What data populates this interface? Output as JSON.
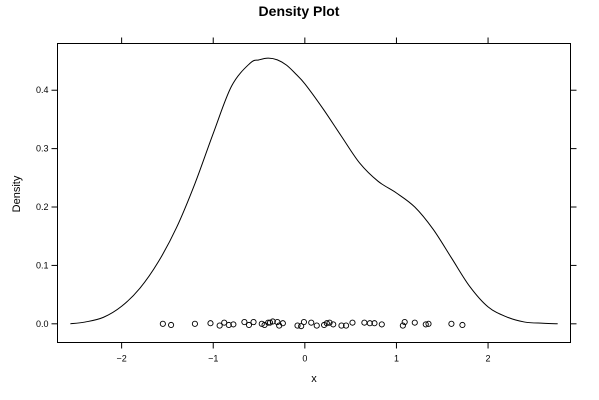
{
  "chart_data": {
    "type": "line",
    "title": "Density Plot",
    "xlabel": "x",
    "ylabel": "Density",
    "xlim": [
      -2.7,
      2.9
    ],
    "ylim": [
      -0.032,
      0.48
    ],
    "xticks": [
      -2,
      -1,
      0,
      1,
      2
    ],
    "yticks": [
      0.0,
      0.1,
      0.2,
      0.3,
      0.4
    ],
    "xtick_labels": [
      "−2",
      "−1",
      "0",
      "1",
      "2"
    ],
    "ytick_labels": [
      "0.0",
      "0.1",
      "0.2",
      "0.3",
      "0.4"
    ],
    "grid": false,
    "legend": "none",
    "series": [
      {
        "x": [
          -2.56,
          -2.4,
          -2.2,
          -2.0,
          -1.8,
          -1.6,
          -1.4,
          -1.2,
          -1.0,
          -0.8,
          -0.6,
          -0.5,
          -0.4,
          -0.3,
          -0.2,
          -0.1,
          0.0,
          0.2,
          0.4,
          0.6,
          0.8,
          1.0,
          1.2,
          1.4,
          1.6,
          1.8,
          2.0,
          2.2,
          2.4,
          2.6,
          2.76
        ],
        "y": [
          0.0,
          0.003,
          0.011,
          0.03,
          0.061,
          0.106,
          0.165,
          0.24,
          0.326,
          0.407,
          0.446,
          0.452,
          0.455,
          0.452,
          0.443,
          0.428,
          0.411,
          0.368,
          0.321,
          0.275,
          0.244,
          0.224,
          0.2,
          0.162,
          0.113,
          0.064,
          0.029,
          0.012,
          0.003,
          0.001,
          0.0
        ]
      }
    ],
    "rug": {
      "x": [
        -1.55,
        -1.46,
        -1.2,
        -1.03,
        -0.93,
        -0.88,
        -0.83,
        -0.78,
        -0.66,
        -0.61,
        -0.56,
        -0.47,
        -0.44,
        -0.4,
        -0.38,
        -0.35,
        -0.3,
        -0.28,
        -0.24,
        -0.08,
        -0.04,
        -0.01,
        0.07,
        0.13,
        0.21,
        0.24,
        0.27,
        0.31,
        0.4,
        0.45,
        0.52,
        0.65,
        0.71,
        0.76,
        0.84,
        1.07,
        1.09,
        1.2,
        1.32,
        1.35,
        1.6,
        1.72
      ],
      "y": [
        0.0,
        -0.002,
        0.0,
        0.001,
        -0.003,
        0.002,
        -0.002,
        -0.001,
        0.003,
        -0.002,
        0.003,
        0.0,
        -0.002,
        0.002,
        0.002,
        0.004,
        0.003,
        -0.003,
        0.001,
        -0.003,
        -0.004,
        0.003,
        0.002,
        -0.003,
        -0.002,
        0.001,
        0.002,
        -0.001,
        -0.003,
        -0.003,
        0.002,
        0.002,
        0.001,
        0.001,
        -0.001,
        -0.003,
        0.003,
        0.002,
        -0.001,
        0.0,
        0.0,
        -0.002
      ]
    }
  }
}
